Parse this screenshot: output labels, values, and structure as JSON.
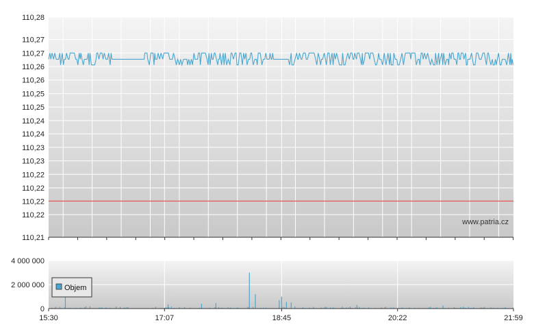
{
  "chart_data": [
    {
      "type": "line",
      "name": "price-chart",
      "ylim": [
        110.21,
        110.28
      ],
      "y_ticks": [
        110.21,
        110.2172,
        110.2215,
        110.2257,
        110.23,
        110.2343,
        110.2386,
        110.2429,
        110.2471,
        110.2514,
        110.2557,
        110.26,
        110.2643,
        110.2686,
        110.2729,
        110.28
      ],
      "y_tick_labels": [
        "110,21",
        "110,22",
        "110,22",
        "110,22",
        "110,22",
        "110,23",
        "110,23",
        "110,24",
        "110,24",
        "110,25",
        "110,25",
        "110,26",
        "110,26",
        "110,27",
        "110,27",
        "110,28"
      ],
      "x_range_minutes": [
        0,
        389
      ],
      "x_ticks": [
        0,
        97,
        195,
        292,
        389
      ],
      "x_tick_labels": [
        "15:30",
        "17:07",
        "18:45",
        "20:22",
        "21:59"
      ],
      "grid": true,
      "watermark": "www.patria.cz",
      "reference_line": {
        "y": 110.2215,
        "color": "#e05050"
      },
      "series_color": "#4aa6cf",
      "levels": [
        110.2648,
        110.2666,
        110.2686
      ],
      "series_pattern": "oscillates between levels 110.2648, 110.2666 and 110.2686 throughout the session",
      "flat_segments": [
        {
          "from_min": 54,
          "to_min": 61,
          "y": 110.2666
        },
        {
          "from_min": 62,
          "to_min": 80,
          "y": 110.2666
        },
        {
          "from_min": 188,
          "to_min": 200,
          "y": 110.2666
        }
      ]
    },
    {
      "type": "bar",
      "name": "volume-chart",
      "ylim": [
        0,
        4000000
      ],
      "y_ticks": [
        0,
        2000000,
        4000000
      ],
      "y_tick_labels": [
        "0",
        "2 000 000",
        "4 000 000"
      ],
      "x_ticks": [
        0,
        97,
        195,
        292,
        389
      ],
      "x_tick_labels": [
        "15:30",
        "17:07",
        "18:45",
        "20:22",
        "21:59"
      ],
      "series": [
        {
          "name": "Objem",
          "color": "#4aa6cf"
        }
      ],
      "peaks": [
        {
          "x_min": 14,
          "value": 1400000
        },
        {
          "x_min": 168,
          "value": 3000000
        },
        {
          "x_min": 173,
          "value": 1200000
        },
        {
          "x_min": 193,
          "value": 700000
        },
        {
          "x_min": 195,
          "value": 1000000
        },
        {
          "x_min": 199,
          "value": 550000
        },
        {
          "x_min": 203,
          "value": 500000
        },
        {
          "x_min": 128,
          "value": 400000
        },
        {
          "x_min": 140,
          "value": 450000
        },
        {
          "x_min": 100,
          "value": 350000
        },
        {
          "x_min": 258,
          "value": 300000
        },
        {
          "x_min": 330,
          "value": 250000
        }
      ],
      "baseline_volume": "typical bars between 30 000 and 200 000"
    }
  ]
}
